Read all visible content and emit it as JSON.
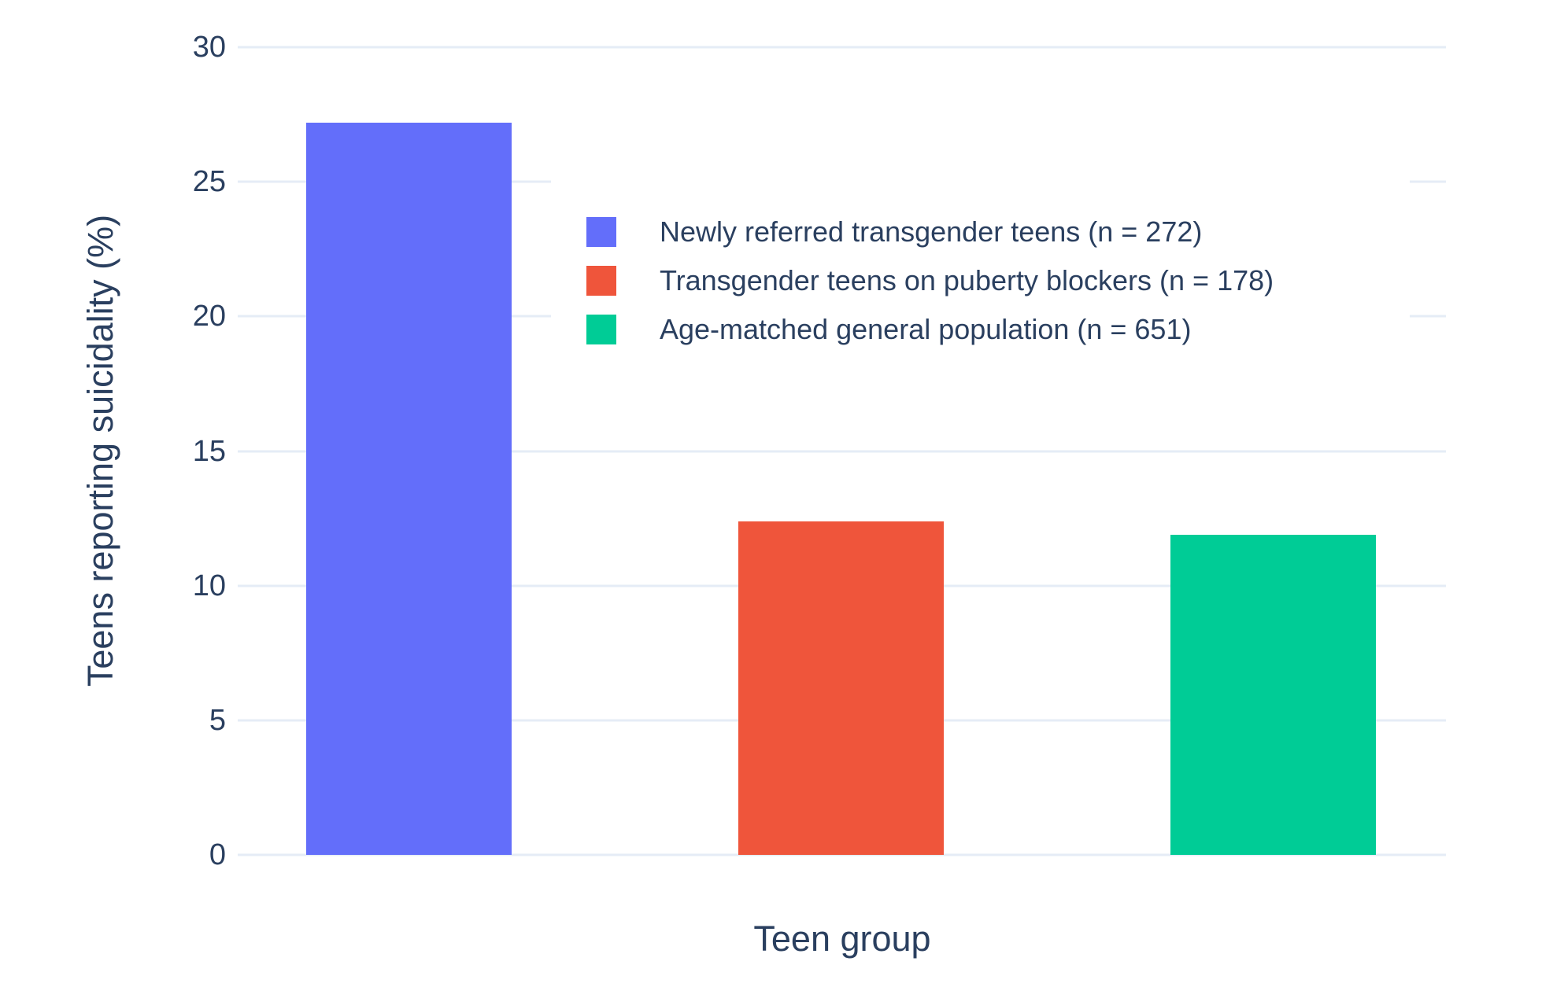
{
  "chart_data": {
    "type": "bar",
    "title": "",
    "xlabel": "Teen group",
    "ylabel": "Teens reporting suicidality (%)",
    "ylim": [
      0,
      30
    ],
    "yticks": [
      0,
      5,
      10,
      15,
      20,
      25,
      30
    ],
    "grid": true,
    "background": "#ffffff",
    "gridline_color": "#e5ecf6",
    "text_color": "#2a3f5f",
    "legend_position": "inside-upper-center",
    "categories": [
      "Newly referred transgender teens",
      "Transgender teens on puberty blockers",
      "Age-matched general population"
    ],
    "series": [
      {
        "name": "Newly referred transgender teens (n = 272)",
        "value": 27.2,
        "color": "#636EFA"
      },
      {
        "name": "Transgender teens on puberty blockers (n = 178)",
        "value": 12.4,
        "color": "#EF553B"
      },
      {
        "name": "Age-matched general population (n = 651)",
        "value": 11.9,
        "color": "#00CC96"
      }
    ]
  }
}
